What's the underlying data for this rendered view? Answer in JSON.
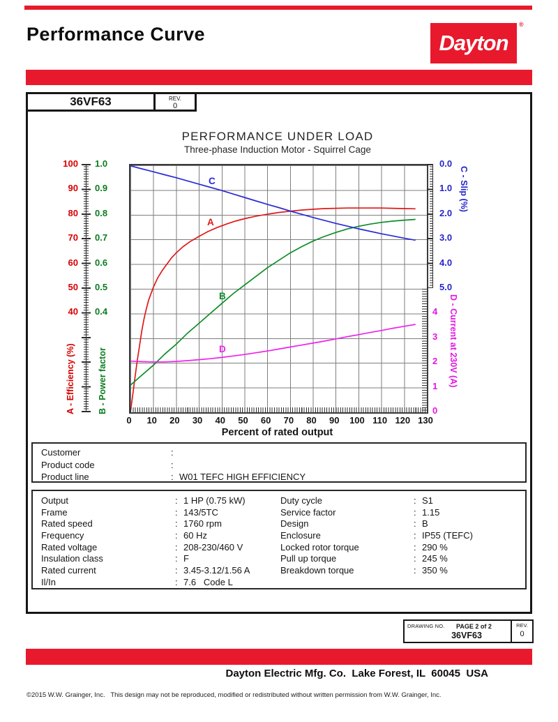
{
  "header": {
    "title": "Performance Curve",
    "brand": "Dayton",
    "brand_reg": "®",
    "model": "36VF63",
    "rev_label": "REV.",
    "rev_value": "0"
  },
  "chart_data": {
    "type": "line",
    "title": "PERFORMANCE UNDER LOAD",
    "subtitle": "Three-phase Induction Motor - Squirrel Cage",
    "xlabel": "Percent of rated output",
    "x_range": [
      0,
      130
    ],
    "grid": true,
    "x_ticks": [
      "0",
      "10",
      "20",
      "30",
      "40",
      "50",
      "60",
      "70",
      "80",
      "90",
      "100",
      "110",
      "120",
      "130"
    ],
    "axes": {
      "efficiency": {
        "label": "A - Efficiency (%)",
        "side": "left",
        "color": "#d60000",
        "range": [
          0,
          100
        ],
        "ticks": [
          "100",
          "90",
          "80",
          "70",
          "60",
          "50",
          "40"
        ]
      },
      "power_factor": {
        "label": "B - Power factor",
        "side": "left",
        "color": "#0a7d1e",
        "range": [
          0,
          1
        ],
        "ticks": [
          "1.0",
          "0.9",
          "0.8",
          "0.7",
          "0.6",
          "0.5",
          "0.4"
        ]
      },
      "slip": {
        "label": "C - Slip (%)",
        "side": "right",
        "color": "#2525cc",
        "range": [
          0,
          5
        ],
        "ticks": [
          "0.0",
          "1.0",
          "2.0",
          "3.0",
          "4.0",
          "5.0"
        ]
      },
      "current": {
        "label": "D - Current at 230V (A)",
        "side": "right",
        "color": "#e316e3",
        "range": [
          0,
          5
        ],
        "ticks": [
          "4",
          "3",
          "2",
          "1",
          "0"
        ]
      }
    },
    "series": [
      {
        "id": "A",
        "name": "Efficiency (%)",
        "scale": "eff",
        "color": "#e01818",
        "label": "A",
        "label_xy": [
          110,
          86
        ],
        "points": [
          [
            0,
            0
          ],
          [
            1,
            7
          ],
          [
            2,
            14
          ],
          [
            3,
            21
          ],
          [
            4,
            27
          ],
          [
            5,
            33
          ],
          [
            6,
            38
          ],
          [
            7,
            42
          ],
          [
            8,
            45.5
          ],
          [
            10,
            50.5
          ],
          [
            12,
            54.5
          ],
          [
            14,
            57.5
          ],
          [
            16,
            60
          ],
          [
            18,
            62.5
          ],
          [
            20,
            64.5
          ],
          [
            23,
            67
          ],
          [
            26,
            69
          ],
          [
            30,
            71.2
          ],
          [
            34,
            73.2
          ],
          [
            38,
            74.8
          ],
          [
            42,
            76.2
          ],
          [
            46,
            77.4
          ],
          [
            50,
            78.4
          ],
          [
            55,
            79.4
          ],
          [
            60,
            80.2
          ],
          [
            65,
            80.9
          ],
          [
            70,
            81.4
          ],
          [
            75,
            81.9
          ],
          [
            80,
            82.2
          ],
          [
            85,
            82.5
          ],
          [
            90,
            82.6
          ],
          [
            95,
            82.7
          ],
          [
            100,
            82.7
          ],
          [
            105,
            82.7
          ],
          [
            110,
            82.7
          ],
          [
            115,
            82.6
          ],
          [
            120,
            82.5
          ],
          [
            125,
            82.4
          ]
        ]
      },
      {
        "id": "B",
        "name": "Power factor",
        "scale": "pf",
        "color": "#0e8c28",
        "label": "B",
        "label_xy": [
          127,
          192
        ],
        "points": [
          [
            0,
            0.11
          ],
          [
            5,
            0.15
          ],
          [
            10,
            0.19
          ],
          [
            15,
            0.235
          ],
          [
            20,
            0.275
          ],
          [
            25,
            0.32
          ],
          [
            30,
            0.36
          ],
          [
            35,
            0.4
          ],
          [
            40,
            0.44
          ],
          [
            45,
            0.48
          ],
          [
            50,
            0.515
          ],
          [
            55,
            0.55
          ],
          [
            60,
            0.585
          ],
          [
            65,
            0.615
          ],
          [
            70,
            0.645
          ],
          [
            75,
            0.67
          ],
          [
            80,
            0.693
          ],
          [
            85,
            0.712
          ],
          [
            90,
            0.728
          ],
          [
            95,
            0.742
          ],
          [
            100,
            0.753
          ],
          [
            105,
            0.762
          ],
          [
            110,
            0.769
          ],
          [
            115,
            0.774
          ],
          [
            120,
            0.778
          ],
          [
            125,
            0.781
          ]
        ]
      },
      {
        "id": "C",
        "name": "Slip (%)",
        "scale": "slip",
        "color": "#2a2ad8",
        "label": "C",
        "label_xy": [
          112,
          27
        ],
        "points": [
          [
            0,
            0.02
          ],
          [
            5,
            0.14
          ],
          [
            10,
            0.26
          ],
          [
            15,
            0.38
          ],
          [
            20,
            0.5
          ],
          [
            25,
            0.63
          ],
          [
            30,
            0.76
          ],
          [
            35,
            0.89
          ],
          [
            40,
            1.02
          ],
          [
            45,
            1.16
          ],
          [
            50,
            1.3
          ],
          [
            55,
            1.44
          ],
          [
            60,
            1.58
          ],
          [
            65,
            1.71
          ],
          [
            70,
            1.85
          ],
          [
            75,
            1.98
          ],
          [
            80,
            2.11
          ],
          [
            85,
            2.23
          ],
          [
            90,
            2.35
          ],
          [
            95,
            2.46
          ],
          [
            100,
            2.57
          ],
          [
            105,
            2.67
          ],
          [
            110,
            2.77
          ],
          [
            115,
            2.86
          ],
          [
            120,
            2.95
          ],
          [
            125,
            3.03
          ]
        ]
      },
      {
        "id": "D",
        "name": "Current at 230V (A)",
        "scale": "cur",
        "color": "#ee22ee",
        "label": "D",
        "label_xy": [
          127,
          268
        ],
        "points": [
          [
            0,
            2.07
          ],
          [
            5,
            2.05
          ],
          [
            10,
            2.04
          ],
          [
            15,
            2.04
          ],
          [
            20,
            2.06
          ],
          [
            25,
            2.09
          ],
          [
            30,
            2.13
          ],
          [
            35,
            2.17
          ],
          [
            40,
            2.22
          ],
          [
            45,
            2.28
          ],
          [
            50,
            2.34
          ],
          [
            55,
            2.41
          ],
          [
            60,
            2.48
          ],
          [
            65,
            2.56
          ],
          [
            70,
            2.64
          ],
          [
            75,
            2.72
          ],
          [
            80,
            2.8
          ],
          [
            85,
            2.88
          ],
          [
            90,
            2.97
          ],
          [
            95,
            3.06
          ],
          [
            100,
            3.14
          ],
          [
            105,
            3.23
          ],
          [
            110,
            3.31
          ],
          [
            115,
            3.4
          ],
          [
            120,
            3.48
          ],
          [
            125,
            3.56
          ]
        ]
      }
    ]
  },
  "customer_block": {
    "rows": [
      {
        "label": "Customer",
        "value": ""
      },
      {
        "label": "Product code",
        "value": ""
      },
      {
        "label": "Product line",
        "value": "W01 TEFC HIGH EFFICIENCY"
      }
    ]
  },
  "specs": {
    "left": [
      {
        "label": "Output",
        "value": "1 HP (0.75 kW)"
      },
      {
        "label": "Frame",
        "value": "143/5TC"
      },
      {
        "label": "Rated speed",
        "value": "1760 rpm"
      },
      {
        "label": "Frequency",
        "value": "60 Hz"
      },
      {
        "label": "Rated voltage",
        "value": "208-230/460 V"
      },
      {
        "label": "Insulation class",
        "value": "F"
      },
      {
        "label": "Rated current",
        "value": "3.45-3.12/1.56 A"
      },
      {
        "label": "Il/In",
        "value": "7.6   Code L"
      }
    ],
    "right": [
      {
        "label": "Duty cycle",
        "value": "S1"
      },
      {
        "label": "Service factor",
        "value": "1.15"
      },
      {
        "label": "Design",
        "value": "B"
      },
      {
        "label": "Enclosure",
        "value": "IP55 (TEFC)"
      },
      {
        "label": "Locked rotor torque",
        "value": "290 %"
      },
      {
        "label": "Pull up torque",
        "value": "245 %"
      },
      {
        "label": "Breakdown torque",
        "value": "350 %"
      }
    ]
  },
  "drawing_box": {
    "drawing_no_label": "DRAWING NO.",
    "page_label": "PAGE 2 of 2",
    "number": "36VF63",
    "rev_label": "REV.",
    "rev_value": "0"
  },
  "footer": {
    "company_line": "Dayton Electric Mfg. Co.  Lake Forest, IL  60045  USA",
    "copyright": "©2015 W.W. Grainger, Inc.   This design may not be reproduced, modified or redistributed without written permission from W.W. Grainger, Inc."
  },
  "colors": {
    "brand_red": "#e8192c",
    "efficiency_red": "#d60000",
    "power_factor_green": "#0a7d1e",
    "slip_blue": "#2525cc",
    "current_magenta": "#e316e3"
  }
}
